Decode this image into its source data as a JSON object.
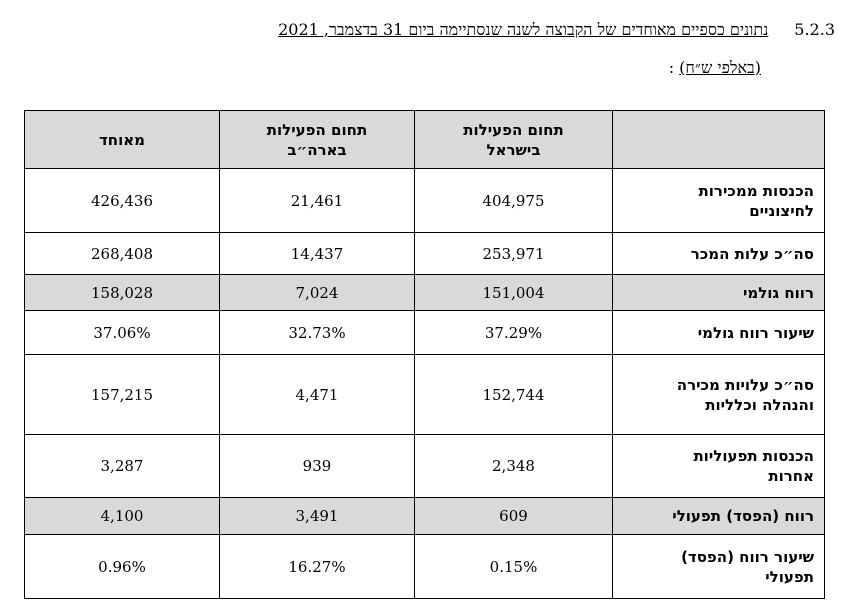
{
  "heading": {
    "section_number": "5.2.3",
    "title": "נתונים כספיים מאוחדים של הקבוצה לשנה שנסתיימה ביום 31 בדצמבר, 2021",
    "unit": "(באלפי ש״ח)",
    "unit_suffix": " :"
  },
  "table": {
    "columns": [
      {
        "line1": "",
        "line2": ""
      },
      {
        "line1": "תחום הפעילות",
        "line2": "בישראל"
      },
      {
        "line1": "תחום הפעילות",
        "line2": "בארה״ב"
      },
      {
        "line1": "מאוחד",
        "line2": ""
      }
    ],
    "rows": [
      {
        "label_line1": "הכנסות ממכירות",
        "label_line2": "לחיצוניים",
        "israel": "404,975",
        "usa": "21,461",
        "consolidated": "426,436"
      },
      {
        "label_line1": "סה״כ עלות המכר",
        "label_line2": "",
        "israel": "253,971",
        "usa": "14,437",
        "consolidated": "268,408"
      },
      {
        "label_line1": "רווח גולמי",
        "label_line2": "",
        "israel": "151,004",
        "usa": "7,024",
        "consolidated": "158,028"
      },
      {
        "label_line1": "שיעור רווח גולמי",
        "label_line2": "",
        "israel": "37.29%",
        "usa": "32.73%",
        "consolidated": "37.06%"
      },
      {
        "label_line1": "סה״כ עלויות מכירה",
        "label_line2": "והנהלה וכלליות",
        "israel": "152,744",
        "usa": "4,471",
        "consolidated": "157,215"
      },
      {
        "label_line1": "הכנסות תפעוליות",
        "label_line2": "אחרות",
        "israel": "2,348",
        "usa": "939",
        "consolidated": "3,287"
      },
      {
        "label_line1": "רווח (הפסד) תפעולי",
        "label_line2": "",
        "israel": "609",
        "usa": "3,491",
        "consolidated": "4,100"
      },
      {
        "label_line1": "שיעור רווח (הפסד)",
        "label_line2": "תפעולי",
        "israel": "0.15%",
        "usa": "16.27%",
        "consolidated": "0.96%"
      }
    ]
  }
}
